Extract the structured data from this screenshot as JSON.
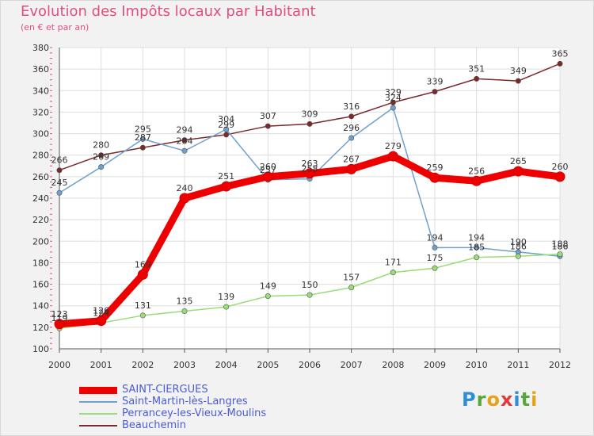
{
  "title": "Evolution des Impôts locaux par Habitant",
  "subtitle": "(en € et par an)",
  "logo": {
    "letters": [
      {
        "ch": "P",
        "color": "#2e8fd6"
      },
      {
        "ch": "r",
        "color": "#5aa53c"
      },
      {
        "ch": "o",
        "color": "#e6a21a"
      },
      {
        "ch": "x",
        "color": "#e03a3a"
      },
      {
        "ch": "i",
        "color": "#2e8fd6"
      },
      {
        "ch": "t",
        "color": "#5aa53c"
      },
      {
        "ch": "i",
        "color": "#e6a21a"
      }
    ]
  },
  "chart_data": {
    "type": "line",
    "title": "Evolution des Impôts locaux par Habitant",
    "subtitle": "(en € et par an)",
    "xlabel": "",
    "ylabel": "",
    "x": [
      "2000",
      "2001",
      "2002",
      "2003",
      "2004",
      "2005",
      "2006",
      "2007",
      "2008",
      "2009",
      "2010",
      "2011",
      "2012"
    ],
    "ylim": [
      100,
      380
    ],
    "yticks": [
      100,
      120,
      140,
      160,
      180,
      200,
      220,
      240,
      260,
      280,
      300,
      320,
      340,
      360,
      380
    ],
    "grid": true,
    "legend_position": "bottom-left",
    "series": [
      {
        "name": "SAINT-CIERGUES",
        "color": "#ee0000",
        "values": [
          123,
          126,
          169,
          240,
          251,
          260,
          263,
          267,
          279,
          259,
          256,
          265,
          260
        ]
      },
      {
        "name": "Saint-Martin-lès-Langres",
        "color": "#6fa0cc",
        "values": [
          245,
          269,
          295,
          284,
          304,
          257,
          258,
          296,
          324,
          194,
          194,
          190,
          186
        ]
      },
      {
        "name": "Perrancey-les-Vieux-Moulins",
        "color": "#99dd77",
        "values": [
          119,
          124,
          131,
          135,
          139,
          149,
          150,
          157,
          171,
          175,
          185,
          186,
          188
        ]
      },
      {
        "name": "Beauchemin",
        "color": "#7a2a2a",
        "values": [
          266,
          280,
          287,
          294,
          299,
          307,
          309,
          316,
          329,
          339,
          351,
          349,
          365
        ]
      }
    ]
  }
}
